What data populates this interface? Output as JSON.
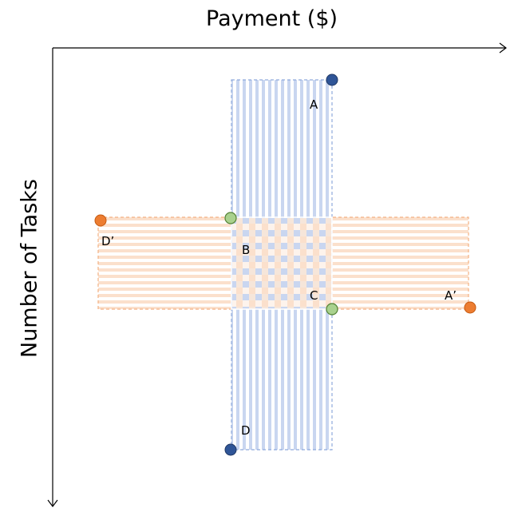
{
  "axes": {
    "x_title": "Payment ($)",
    "y_title": "Number of Tasks"
  },
  "labels": {
    "A": "A",
    "B": "B",
    "C": "C",
    "D": "D",
    "A_prime": "A’",
    "D_prime": "D’"
  },
  "colors": {
    "blue_region_stripe": "#c9d6f0",
    "blue_region_border": "#8faadc",
    "orange_region_stripe": "#fbe0cc",
    "orange_region_border": "#f4b183",
    "blue_point_fill": "#2f5597",
    "blue_point_stroke": "#203864",
    "orange_point_fill": "#ed7d31",
    "orange_point_stroke": "#c55a11",
    "green_point_fill": "#a9d18e",
    "green_point_stroke": "#548235",
    "axis": "#000000"
  }
}
